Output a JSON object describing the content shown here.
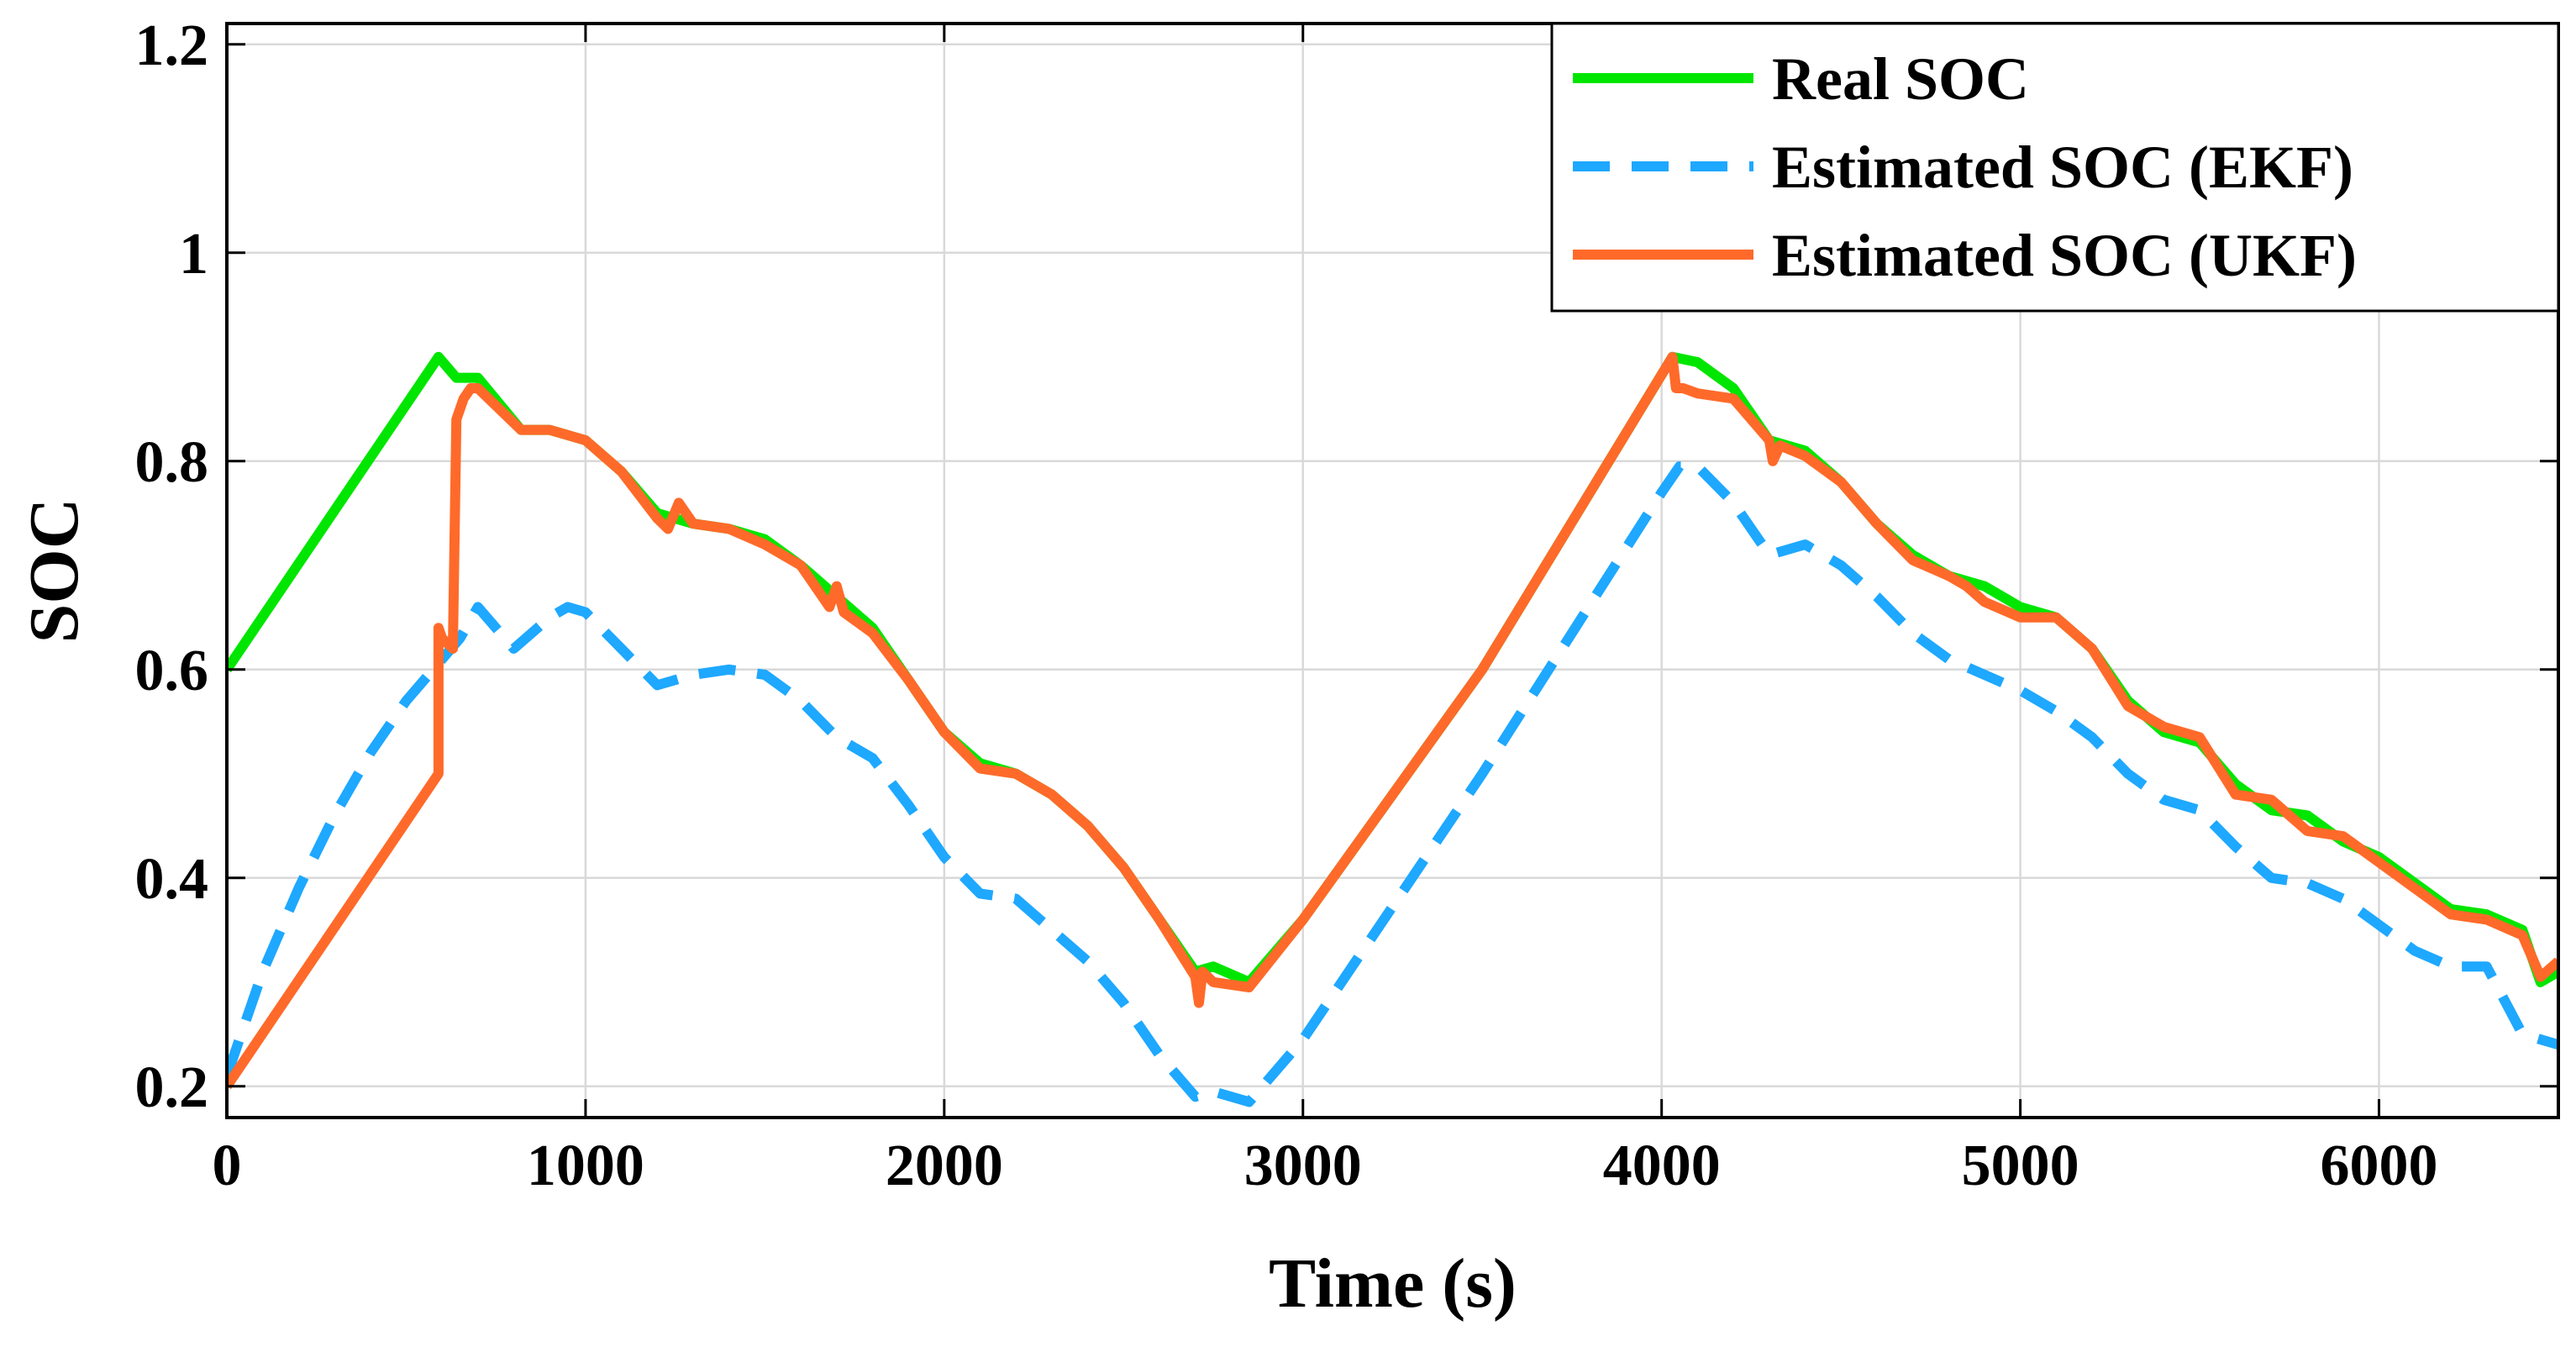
{
  "chart_data": {
    "type": "line",
    "title": "",
    "xlabel": "Time (s)",
    "ylabel": "SOC",
    "xlim": [
      0,
      6500
    ],
    "ylim": [
      0.17,
      1.22
    ],
    "xticks": [
      0,
      1000,
      2000,
      3000,
      4000,
      5000,
      6000
    ],
    "xtick_labels": [
      "0",
      "1000",
      "2000",
      "3000",
      "4000",
      "5000",
      "6000"
    ],
    "yticks": [
      0.2,
      0.4,
      0.6,
      0.8,
      1.0,
      1.2
    ],
    "ytick_labels": [
      "0.2",
      "0.4",
      "0.6",
      "0.8",
      "1",
      "1.2"
    ],
    "grid": true,
    "legend_position": "top-right",
    "series": [
      {
        "name": "Real SOC",
        "color": "#00e600",
        "style": "solid",
        "x": [
          0,
          590,
          640,
          700,
          820,
          900,
          1000,
          1100,
          1200,
          1300,
          1400,
          1500,
          1600,
          1700,
          1800,
          1900,
          2000,
          2100,
          2200,
          2300,
          2400,
          2500,
          2600,
          2700,
          2750,
          2850,
          3000,
          3500,
          4030,
          4100,
          4200,
          4300,
          4400,
          4500,
          4600,
          4700,
          4800,
          4900,
          5000,
          5100,
          5200,
          5300,
          5400,
          5500,
          5600,
          5700,
          5800,
          5900,
          6000,
          6100,
          6200,
          6300,
          6400,
          6450,
          6500
        ],
        "y": [
          0.6,
          0.9,
          0.88,
          0.88,
          0.83,
          0.83,
          0.82,
          0.79,
          0.75,
          0.74,
          0.735,
          0.725,
          0.7,
          0.67,
          0.64,
          0.59,
          0.54,
          0.51,
          0.5,
          0.48,
          0.45,
          0.41,
          0.36,
          0.31,
          0.315,
          0.3,
          0.36,
          0.6,
          0.9,
          0.895,
          0.87,
          0.82,
          0.81,
          0.78,
          0.74,
          0.71,
          0.69,
          0.68,
          0.66,
          0.65,
          0.62,
          0.57,
          0.54,
          0.53,
          0.49,
          0.465,
          0.46,
          0.435,
          0.42,
          0.395,
          0.37,
          0.365,
          0.35,
          0.3,
          0.31
        ]
      },
      {
        "name": "Estimated SOC (EKF)",
        "color": "#1ea8ff",
        "style": "dashed",
        "x": [
          0,
          100,
          200,
          300,
          400,
          500,
          600,
          650,
          700,
          800,
          900,
          950,
          1000,
          1100,
          1200,
          1300,
          1400,
          1500,
          1600,
          1700,
          1800,
          1900,
          2000,
          2100,
          2200,
          2300,
          2400,
          2500,
          2600,
          2700,
          2750,
          2850,
          3000,
          3500,
          4000,
          4050,
          4100,
          4200,
          4300,
          4400,
          4500,
          4600,
          4700,
          4800,
          4900,
          5000,
          5100,
          5200,
          5300,
          5400,
          5500,
          5600,
          5700,
          5800,
          5900,
          6000,
          6100,
          6200,
          6300,
          6400,
          6500
        ],
        "y": [
          0.21,
          0.31,
          0.39,
          0.46,
          0.52,
          0.57,
          0.61,
          0.63,
          0.66,
          0.62,
          0.65,
          0.66,
          0.655,
          0.62,
          0.585,
          0.595,
          0.6,
          0.595,
          0.57,
          0.535,
          0.515,
          0.47,
          0.42,
          0.385,
          0.38,
          0.35,
          0.32,
          0.28,
          0.23,
          0.19,
          0.195,
          0.185,
          0.245,
          0.5,
          0.77,
          0.795,
          0.795,
          0.76,
          0.71,
          0.72,
          0.7,
          0.67,
          0.635,
          0.61,
          0.595,
          0.58,
          0.56,
          0.535,
          0.5,
          0.475,
          0.465,
          0.43,
          0.4,
          0.395,
          0.38,
          0.355,
          0.33,
          0.315,
          0.315,
          0.25,
          0.24
        ]
      },
      {
        "name": "Estimated SOC (UKF)",
        "color": "#ff6a2a",
        "style": "solid",
        "x": [
          0,
          590,
          590,
          600,
          630,
          640,
          660,
          680,
          700,
          820,
          900,
          1000,
          1100,
          1200,
          1230,
          1260,
          1300,
          1400,
          1500,
          1600,
          1680,
          1700,
          1720,
          1800,
          1900,
          2000,
          2100,
          2200,
          2300,
          2400,
          2500,
          2600,
          2700,
          2710,
          2720,
          2750,
          2850,
          3000,
          3500,
          4030,
          4040,
          4060,
          4100,
          4200,
          4300,
          4310,
          4330,
          4400,
          4500,
          4600,
          4700,
          4800,
          4850,
          4900,
          5000,
          5100,
          5200,
          5300,
          5400,
          5500,
          5600,
          5700,
          5800,
          5900,
          6000,
          6100,
          6200,
          6300,
          6400,
          6450,
          6500
        ],
        "y": [
          0.2,
          0.5,
          0.64,
          0.63,
          0.62,
          0.84,
          0.86,
          0.87,
          0.87,
          0.83,
          0.83,
          0.82,
          0.79,
          0.745,
          0.735,
          0.76,
          0.74,
          0.735,
          0.72,
          0.7,
          0.66,
          0.68,
          0.655,
          0.635,
          0.59,
          0.54,
          0.505,
          0.5,
          0.48,
          0.45,
          0.41,
          0.36,
          0.305,
          0.28,
          0.31,
          0.3,
          0.295,
          0.36,
          0.6,
          0.9,
          0.87,
          0.87,
          0.865,
          0.86,
          0.82,
          0.8,
          0.815,
          0.805,
          0.78,
          0.74,
          0.705,
          0.69,
          0.68,
          0.665,
          0.65,
          0.65,
          0.62,
          0.565,
          0.545,
          0.535,
          0.48,
          0.475,
          0.445,
          0.44,
          0.415,
          0.39,
          0.365,
          0.36,
          0.345,
          0.305,
          0.32
        ]
      }
    ]
  }
}
